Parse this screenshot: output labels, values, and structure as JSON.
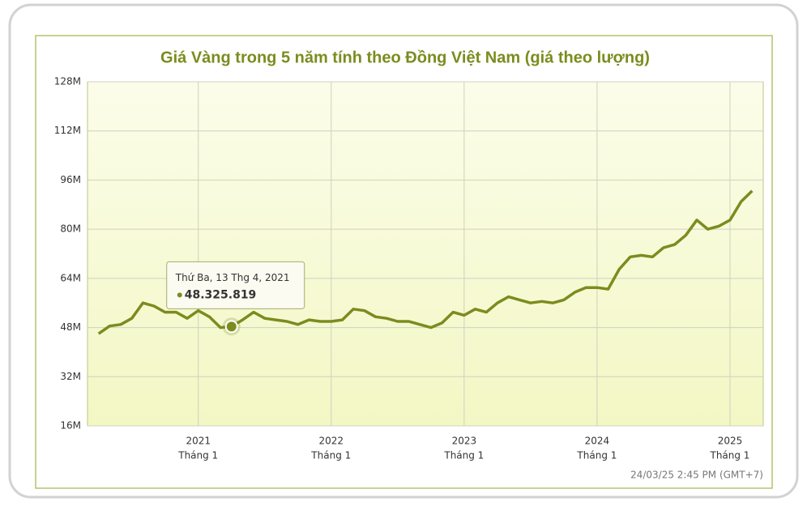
{
  "chart_data": {
    "type": "line",
    "title": "Giá Vàng trong 5 năm tính theo Đồng Việt Nam (giá theo lượng)",
    "x": [
      "2020-04",
      "2020-05",
      "2020-06",
      "2020-07",
      "2020-08",
      "2020-09",
      "2020-10",
      "2020-11",
      "2020-12",
      "2021-01",
      "2021-02",
      "2021-03",
      "2021-04",
      "2021-05",
      "2021-06",
      "2021-07",
      "2021-08",
      "2021-09",
      "2021-10",
      "2021-11",
      "2021-12",
      "2022-01",
      "2022-02",
      "2022-03",
      "2022-04",
      "2022-05",
      "2022-06",
      "2022-07",
      "2022-08",
      "2022-09",
      "2022-10",
      "2022-11",
      "2022-12",
      "2023-01",
      "2023-02",
      "2023-03",
      "2023-04",
      "2023-05",
      "2023-06",
      "2023-07",
      "2023-08",
      "2023-09",
      "2023-10",
      "2023-11",
      "2023-12",
      "2024-01",
      "2024-02",
      "2024-03",
      "2024-04",
      "2024-05",
      "2024-06",
      "2024-07",
      "2024-08",
      "2024-09",
      "2024-10",
      "2024-11",
      "2024-12",
      "2025-01",
      "2025-02",
      "2025-03"
    ],
    "series": [
      {
        "name": "Giá Vàng",
        "color": "#7b8c1e",
        "values": [
          46000000,
          48500000,
          49000000,
          51000000,
          56000000,
          55000000,
          53000000,
          53000000,
          51000000,
          53500000,
          51500000,
          48000000,
          48325819,
          50500000,
          53000000,
          51000000,
          50500000,
          50000000,
          49000000,
          50500000,
          50000000,
          50000000,
          50500000,
          54000000,
          53500000,
          51500000,
          51000000,
          50000000,
          50000000,
          49000000,
          48000000,
          49500000,
          53000000,
          52000000,
          54000000,
          53000000,
          56000000,
          58000000,
          57000000,
          56000000,
          56500000,
          56000000,
          57000000,
          59500000,
          61000000,
          61000000,
          60500000,
          67000000,
          71000000,
          71500000,
          71000000,
          74000000,
          75000000,
          78000000,
          83000000,
          80000000,
          81000000,
          83000000,
          89000000,
          92500000
        ]
      }
    ],
    "xlim": [
      "2020-03",
      "2025-04"
    ],
    "xticks": [
      {
        "value": "2021-01",
        "label": "2021",
        "sublabel": "Tháng 1"
      },
      {
        "value": "2022-01",
        "label": "2022",
        "sublabel": "Tháng 1"
      },
      {
        "value": "2023-01",
        "label": "2023",
        "sublabel": "Tháng 1"
      },
      {
        "value": "2024-01",
        "label": "2024",
        "sublabel": "Tháng 1"
      },
      {
        "value": "2025-01",
        "label": "2025",
        "sublabel": "Tháng 1"
      }
    ],
    "ylim": [
      16000000,
      128000000
    ],
    "yticks": [
      {
        "value": 16000000,
        "label": "16M"
      },
      {
        "value": 32000000,
        "label": "32M"
      },
      {
        "value": 48000000,
        "label": "48M"
      },
      {
        "value": 64000000,
        "label": "64M"
      },
      {
        "value": 80000000,
        "label": "80M"
      },
      {
        "value": 96000000,
        "label": "96M"
      },
      {
        "value": 112000000,
        "label": "112M"
      },
      {
        "value": 128000000,
        "label": "128M"
      }
    ],
    "grid": true,
    "tooltip": {
      "series": 0,
      "index": 12,
      "label": "Thứ Ba, 13 Thg 4, 2021",
      "value_label": "48.325.819"
    },
    "footer": "24/03/25 2:45 PM (GMT+7)"
  }
}
